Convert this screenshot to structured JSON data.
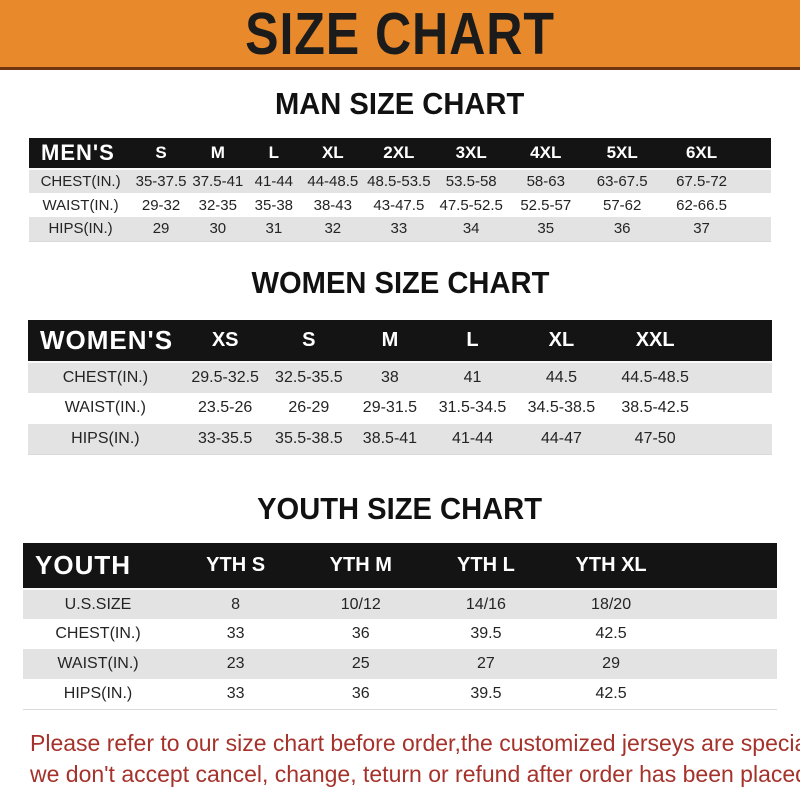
{
  "banner": {
    "title": "SIZE CHART",
    "bg_color": "#E8892B",
    "text_color": "#1b1b1b"
  },
  "colors": {
    "table_band_bg": "#141414",
    "table_band_text": "#ffffff",
    "row_alt_gray": "#E3E3E3",
    "row_white": "#ffffff",
    "footer_red": "#A5322B"
  },
  "sections": [
    {
      "heading": "MAN SIZE CHART",
      "table": {
        "label": "MEN'S",
        "columns": [
          "S",
          "M",
          "L",
          "XL",
          "2XL",
          "3XL",
          "4XL",
          "5XL",
          "6XL"
        ],
        "rows": [
          {
            "label": "CHEST(IN.)",
            "values": [
              "35-37.5",
              "37.5-41",
              "41-44",
              "44-48.5",
              "48.5-53.5",
              "53.5-58",
              "58-63",
              "63-67.5",
              "67.5-72"
            ]
          },
          {
            "label": "WAIST(IN.)",
            "values": [
              "29-32",
              "32-35",
              "35-38",
              "38-43",
              "43-47.5",
              "47.5-52.5",
              "52.5-57",
              "57-62",
              "62-66.5"
            ]
          },
          {
            "label": "HIPS(IN.)",
            "values": [
              "29",
              "30",
              "31",
              "32",
              "33",
              "34",
              "35",
              "36",
              "37"
            ]
          }
        ]
      }
    },
    {
      "heading": "WOMEN SIZE CHART",
      "table": {
        "label": "WOMEN'S",
        "columns": [
          "XS",
          "S",
          "M",
          "L",
          "XL",
          "XXL"
        ],
        "rows": [
          {
            "label": "CHEST(IN.)",
            "values": [
              "29.5-32.5",
              "32.5-35.5",
              "38",
              "41",
              "44.5",
              "44.5-48.5"
            ]
          },
          {
            "label": "WAIST(IN.)",
            "values": [
              "23.5-26",
              "26-29",
              "29-31.5",
              "31.5-34.5",
              "34.5-38.5",
              "38.5-42.5"
            ]
          },
          {
            "label": "HIPS(IN.)",
            "values": [
              "33-35.5",
              "35.5-38.5",
              "38.5-41",
              "41-44",
              "44-47",
              "47-50"
            ]
          }
        ]
      }
    },
    {
      "heading": "YOUTH SIZE CHART",
      "table": {
        "label": "YOUTH",
        "columns": [
          "YTH S",
          "YTH M",
          "YTH L",
          "YTH XL"
        ],
        "rows": [
          {
            "label": "U.S.SIZE",
            "values": [
              "8",
              "10/12",
              "14/16",
              "18/20"
            ]
          },
          {
            "label": "CHEST(IN.)",
            "values": [
              "33",
              "36",
              "39.5",
              "42.5"
            ]
          },
          {
            "label": "WAIST(IN.)",
            "values": [
              "23",
              "25",
              "27",
              "29"
            ]
          },
          {
            "label": "HIPS(IN.)",
            "values": [
              "33",
              "36",
              "39.5",
              "42.5"
            ]
          }
        ]
      }
    }
  ],
  "footer": {
    "line1": "Please refer to our size chart before order,the customized jerseys are special products,",
    "line2": "we don't accept cancel, change, teturn or refund after order has been placed!"
  }
}
